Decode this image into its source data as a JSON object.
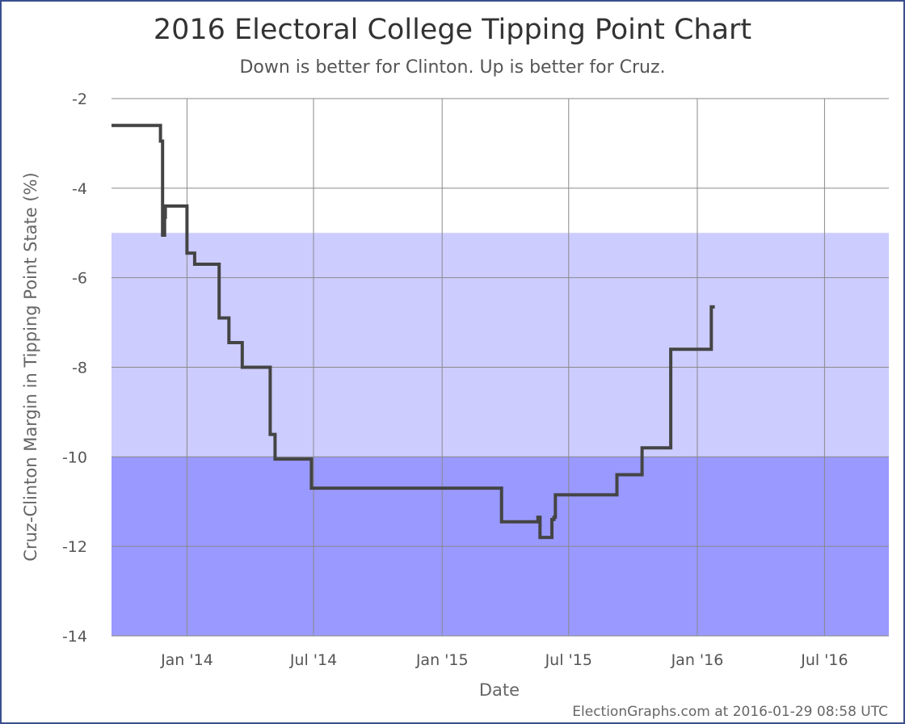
{
  "chart_data": {
    "type": "line",
    "title": "2016 Electoral College Tipping Point Chart",
    "subtitle": "Down is better for Clinton. Up is better for Cruz.",
    "xlabel": "Date",
    "ylabel": "Cruz-Clinton Margin in Tipping Point State (%)",
    "ylim": [
      -14,
      -2
    ],
    "xlim": [
      "2013-09-15",
      "2016-10-01"
    ],
    "y_ticks": [
      -2,
      -4,
      -6,
      -8,
      -10,
      -12,
      -14
    ],
    "y_tick_labels": [
      "-2",
      "-4",
      "-6",
      "-8",
      "-10",
      "-12",
      "-14"
    ],
    "x_ticks": [
      "2014-01-01",
      "2014-07-01",
      "2015-01-01",
      "2015-07-01",
      "2016-01-01",
      "2016-07-01"
    ],
    "x_tick_labels": [
      "Jan '14",
      "Jul '14",
      "Jan '15",
      "Jul '15",
      "Jan '16",
      "Jul '16"
    ],
    "grid": true,
    "bands": [
      {
        "from": -10,
        "to": -5,
        "color": "#ccccff"
      },
      {
        "from": -14,
        "to": -10,
        "color": "#9999ff"
      }
    ],
    "line_color": "#444444",
    "step": true,
    "series": [
      {
        "x": [
          "2013-09-15",
          "2013-11-24",
          "2013-11-27",
          "2013-11-30",
          "2013-12-01",
          "2013-12-03",
          "2014-01-01",
          "2014-01-12",
          "2014-02-16",
          "2014-03-02",
          "2014-03-21",
          "2014-04-30",
          "2014-05-07",
          "2014-06-28",
          "2015-03-27",
          "2015-05-18",
          "2015-05-21",
          "2015-06-07",
          "2015-06-10",
          "2015-06-12",
          "2015-09-08",
          "2015-10-14",
          "2015-11-24",
          "2016-01-21",
          "2016-01-26"
        ],
        "y": [
          -2.6,
          -2.95,
          -5.05,
          -4.65,
          -4.4,
          -4.4,
          -5.45,
          -5.7,
          -6.9,
          -7.45,
          -8.0,
          -9.5,
          -10.05,
          -10.7,
          -11.45,
          -11.35,
          -11.8,
          -11.4,
          -11.35,
          -10.85,
          -10.4,
          -9.8,
          -7.6,
          -6.65,
          -6.65
        ]
      }
    ]
  },
  "footer": {
    "credit": "ElectionGraphs.com at 2016-01-29 08:58 UTC"
  }
}
